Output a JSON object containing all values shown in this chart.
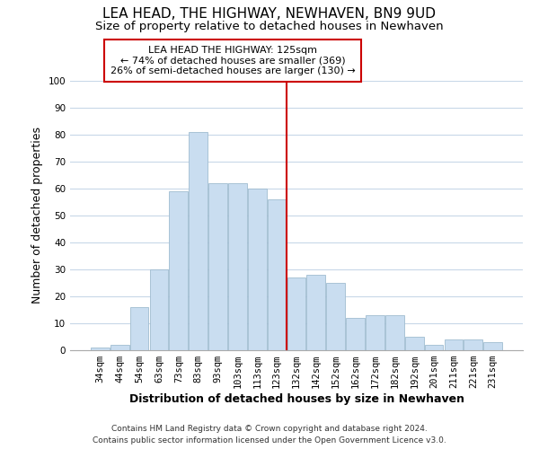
{
  "title": "LEA HEAD, THE HIGHWAY, NEWHAVEN, BN9 9UD",
  "subtitle": "Size of property relative to detached houses in Newhaven",
  "xlabel": "Distribution of detached houses by size in Newhaven",
  "ylabel": "Number of detached properties",
  "categories": [
    "34sqm",
    "44sqm",
    "54sqm",
    "63sqm",
    "73sqm",
    "83sqm",
    "93sqm",
    "103sqm",
    "113sqm",
    "123sqm",
    "132sqm",
    "142sqm",
    "152sqm",
    "162sqm",
    "172sqm",
    "182sqm",
    "192sqm",
    "201sqm",
    "211sqm",
    "221sqm",
    "231sqm"
  ],
  "values": [
    1,
    2,
    16,
    30,
    59,
    81,
    62,
    62,
    60,
    56,
    27,
    28,
    25,
    12,
    13,
    13,
    5,
    2,
    4,
    4,
    3
  ],
  "bar_color": "#c9ddf0",
  "bar_edge_color": "#a0bcd0",
  "ylim": [
    0,
    100
  ],
  "yticks": [
    0,
    10,
    20,
    30,
    40,
    50,
    60,
    70,
    80,
    90,
    100
  ],
  "property_line_x": 9.5,
  "property_line_color": "#cc0000",
  "annotation_title": "LEA HEAD THE HIGHWAY: 125sqm",
  "annotation_line1": "← 74% of detached houses are smaller (369)",
  "annotation_line2": "26% of semi-detached houses are larger (130) →",
  "annotation_box_color": "#ffffff",
  "annotation_box_edge_color": "#cc0000",
  "footer_line1": "Contains HM Land Registry data © Crown copyright and database right 2024.",
  "footer_line2": "Contains public sector information licensed under the Open Government Licence v3.0.",
  "background_color": "#ffffff",
  "grid_color": "#c8d8e8",
  "title_fontsize": 11,
  "subtitle_fontsize": 9.5,
  "axis_label_fontsize": 9,
  "tick_fontsize": 7.5,
  "annotation_fontsize": 8,
  "footer_fontsize": 6.5
}
